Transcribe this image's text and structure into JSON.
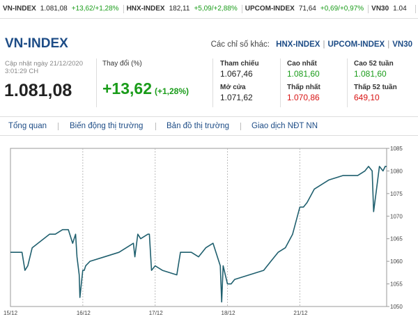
{
  "ticker": [
    {
      "name": "VN-INDEX",
      "value": "1.081,08",
      "change": "+13,62/+1,28%"
    },
    {
      "name": "HNX-INDEX",
      "value": "182,11",
      "change": "+5,09/+2,88%"
    },
    {
      "name": "UPCOM-INDEX",
      "value": "71,64",
      "change": "+0,69/+0,97%"
    },
    {
      "name": "VN30",
      "value": "1.04",
      "change": ""
    }
  ],
  "header": {
    "title": "VN-INDEX",
    "other_label": "Các chỉ số khác:",
    "other_links": [
      "HNX-INDEX",
      "UPCOM-INDEX",
      "VN30"
    ]
  },
  "summary": {
    "updated_line1": "Cập nhật ngày 21/12/2020",
    "updated_line2": "3:01:29 CH",
    "value": "1.081,08",
    "change_label": "Thay đổi (%)",
    "change": "+13,62",
    "change_pct": "(+1,28%)"
  },
  "stats": {
    "ref_label": "Tham chiếu",
    "ref_value": "1.067,46",
    "open_label": "Mở cửa",
    "open_value": "1.071,62",
    "high_label": "Cao nhất",
    "high_value": "1.081,60",
    "low_label": "Thấp nhất",
    "low_value": "1.070,86",
    "high52_label": "Cao 52 tuần",
    "high52_value": "1.081,60",
    "low52_label": "Thấp 52 tuần",
    "low52_value": "649,10"
  },
  "tabs": [
    "Tổng quan",
    "Biến động thị trường",
    "Bản đồ thị trường",
    "Giao dịch NĐT NN"
  ],
  "colors": {
    "brand": "#1d4c86",
    "up": "#1a9c1a",
    "down": "#d81515",
    "line": "#1f5f6e"
  },
  "chart_data": {
    "type": "line",
    "x_tick_labels": [
      "15/12",
      "16/12",
      "17/12",
      "18/12",
      "21/12"
    ],
    "y_ticks": [
      1050,
      1055,
      1060,
      1065,
      1070,
      1075,
      1080,
      1085
    ],
    "ylim": [
      1050,
      1085
    ],
    "x_unit": "day index (0 = 15/12 open)",
    "series": [
      {
        "x": [
          0,
          0.12,
          0.16,
          0.2,
          0.24,
          0.3,
          0.38,
          0.46,
          0.54,
          0.62,
          0.72,
          0.8,
          0.86,
          0.9,
          0.92,
          0.95,
          0.96,
          1,
          1.02,
          1.04,
          1.1,
          1.3,
          1.5,
          1.6,
          1.7,
          1.72,
          1.76,
          1.8,
          1.9,
          1.92,
          1.95,
          2,
          2.1,
          2.3,
          2.35,
          2.4,
          2.5,
          2.6,
          2.7,
          2.8,
          2.9,
          2.92,
          2.94,
          3.0,
          3.05,
          3.1,
          3.3,
          3.5,
          3.6,
          3.7,
          3.8,
          3.9,
          4.0,
          4.05,
          4.1,
          4.2,
          4.4,
          4.6,
          4.8,
          4.9,
          4.95,
          5.0,
          5.02,
          5.06,
          5.1,
          5.15,
          5.18,
          5.2
        ],
        "y": [
          1062,
          1062,
          1062,
          1058,
          1059,
          1063,
          1064,
          1065,
          1066,
          1066,
          1067,
          1067,
          1064,
          1066,
          1061,
          1057,
          1052,
          1058,
          1058,
          1059,
          1060,
          1061,
          1062,
          1063,
          1064,
          1061,
          1066,
          1065,
          1066,
          1066,
          1058,
          1059,
          1058,
          1057,
          1062,
          1062,
          1062,
          1061,
          1063,
          1064,
          1059,
          1051,
          1059,
          1055,
          1055,
          1056,
          1057,
          1058,
          1060,
          1062,
          1063,
          1066,
          1072,
          1072,
          1073,
          1076,
          1078,
          1079,
          1079,
          1080,
          1081,
          1080,
          1071,
          1076,
          1081,
          1080,
          1081,
          1081
        ]
      }
    ]
  }
}
